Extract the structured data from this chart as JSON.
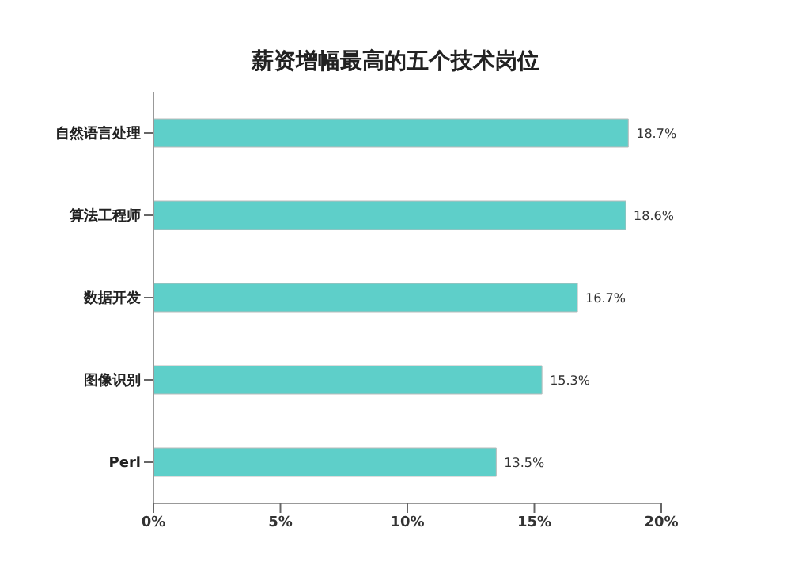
{
  "chart_data": {
    "type": "bar",
    "orientation": "horizontal",
    "title": "薪资增幅最高的五个技术岗位",
    "categories": [
      "自然语言处理",
      "算法工程师",
      "数据开发",
      "图像识别",
      "Perl"
    ],
    "values": [
      18.7,
      18.6,
      16.7,
      15.3,
      13.5
    ],
    "value_labels": [
      "18.7%",
      "18.6%",
      "16.7%",
      "15.3%",
      "13.5%"
    ],
    "color": "#5ecfc9",
    "xlim": [
      0,
      20
    ],
    "xticks": [
      {
        "value": 0,
        "label": "0%"
      },
      {
        "value": 5,
        "label": "5%"
      },
      {
        "value": 10,
        "label": "10%"
      },
      {
        "value": 15,
        "label": "15%"
      },
      {
        "value": 20,
        "label": "20%"
      }
    ],
    "grid": false,
    "legend": false
  }
}
